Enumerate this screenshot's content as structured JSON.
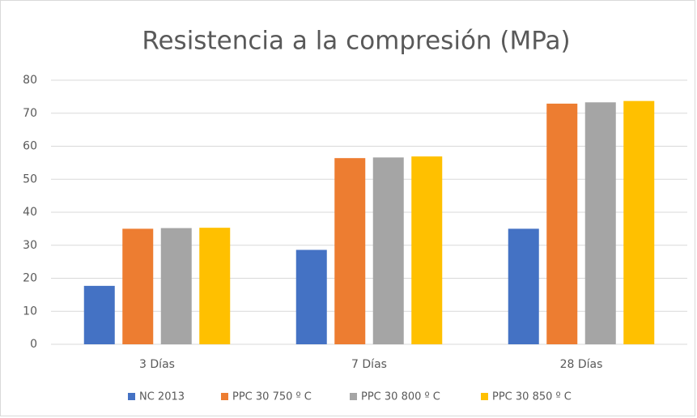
{
  "chart_data": {
    "type": "bar",
    "title": "Resistencia a la compresión (MPa)",
    "categories": [
      "3 Días",
      "7 Días",
      "28 Días"
    ],
    "series": [
      {
        "name": "NC 2013",
        "color": "#4472c4",
        "values": [
          17.7,
          28.6,
          35
        ]
      },
      {
        "name": "PPC 30 750 º C",
        "color": "#ed7d31",
        "values": [
          35,
          56.4,
          72.9
        ]
      },
      {
        "name": "PPC 30 800 º C",
        "color": "#a5a5a5",
        "values": [
          35.2,
          56.6,
          73.3
        ]
      },
      {
        "name": "PPC 30 850 º C",
        "color": "#ffc000",
        "values": [
          35.3,
          56.9,
          73.7
        ]
      }
    ],
    "ylim": [
      0,
      80
    ],
    "yticks": [
      0,
      10,
      20,
      30,
      40,
      50,
      60,
      70,
      80
    ],
    "grid": true,
    "legend": "bottom"
  }
}
